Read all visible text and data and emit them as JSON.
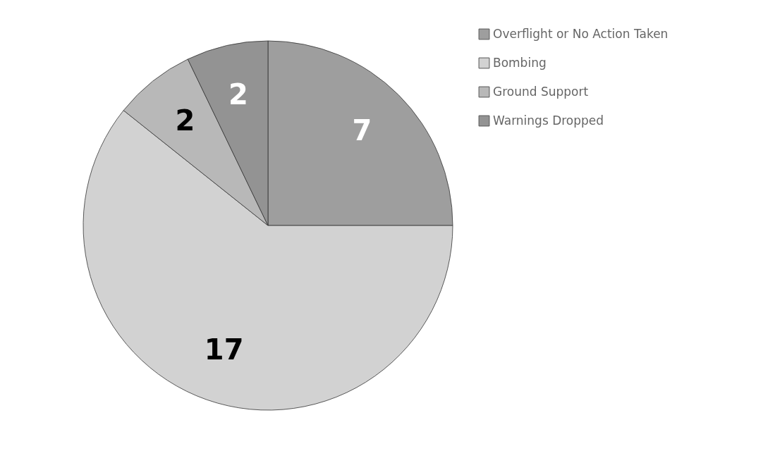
{
  "chart_data": {
    "type": "pie",
    "categories": [
      "Overflight or No Action Taken",
      "Bombing",
      "Ground Support",
      "Warnings Dropped"
    ],
    "values": [
      7,
      17,
      2,
      2
    ],
    "colors": [
      "#9e9e9e",
      "#d2d2d2",
      "#b8b8b8",
      "#939393"
    ],
    "data_labels": true,
    "legend": "right"
  }
}
